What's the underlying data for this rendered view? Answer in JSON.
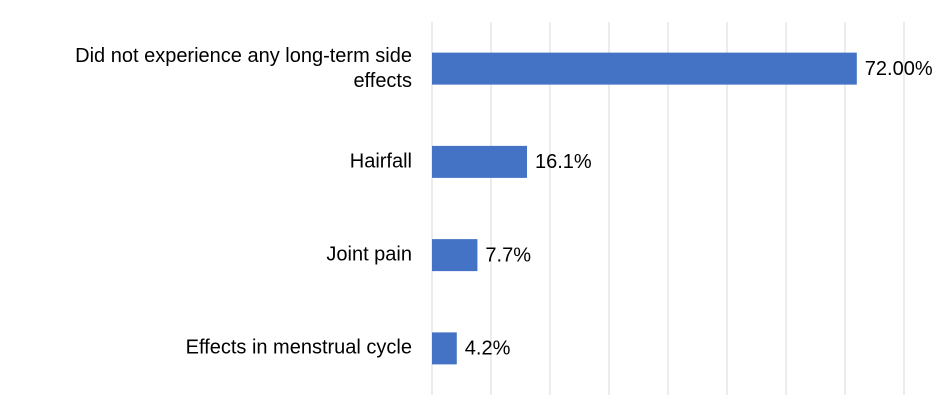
{
  "chart_data": {
    "type": "barh",
    "categories": [
      "Did not experience any long-term side effects",
      "Hairfall",
      "Joint pain",
      "Effects in menstrual cycle"
    ],
    "values": [
      72,
      16.1,
      7.7,
      4.2
    ],
    "value_labels": [
      "72.00%",
      "16.1%",
      "7.7%",
      "4.2%"
    ],
    "color": "#4472c4",
    "xlim": [
      0,
      80
    ],
    "xticks": [
      0,
      10,
      20,
      30,
      40,
      50,
      60,
      70,
      80
    ],
    "grid": true
  }
}
